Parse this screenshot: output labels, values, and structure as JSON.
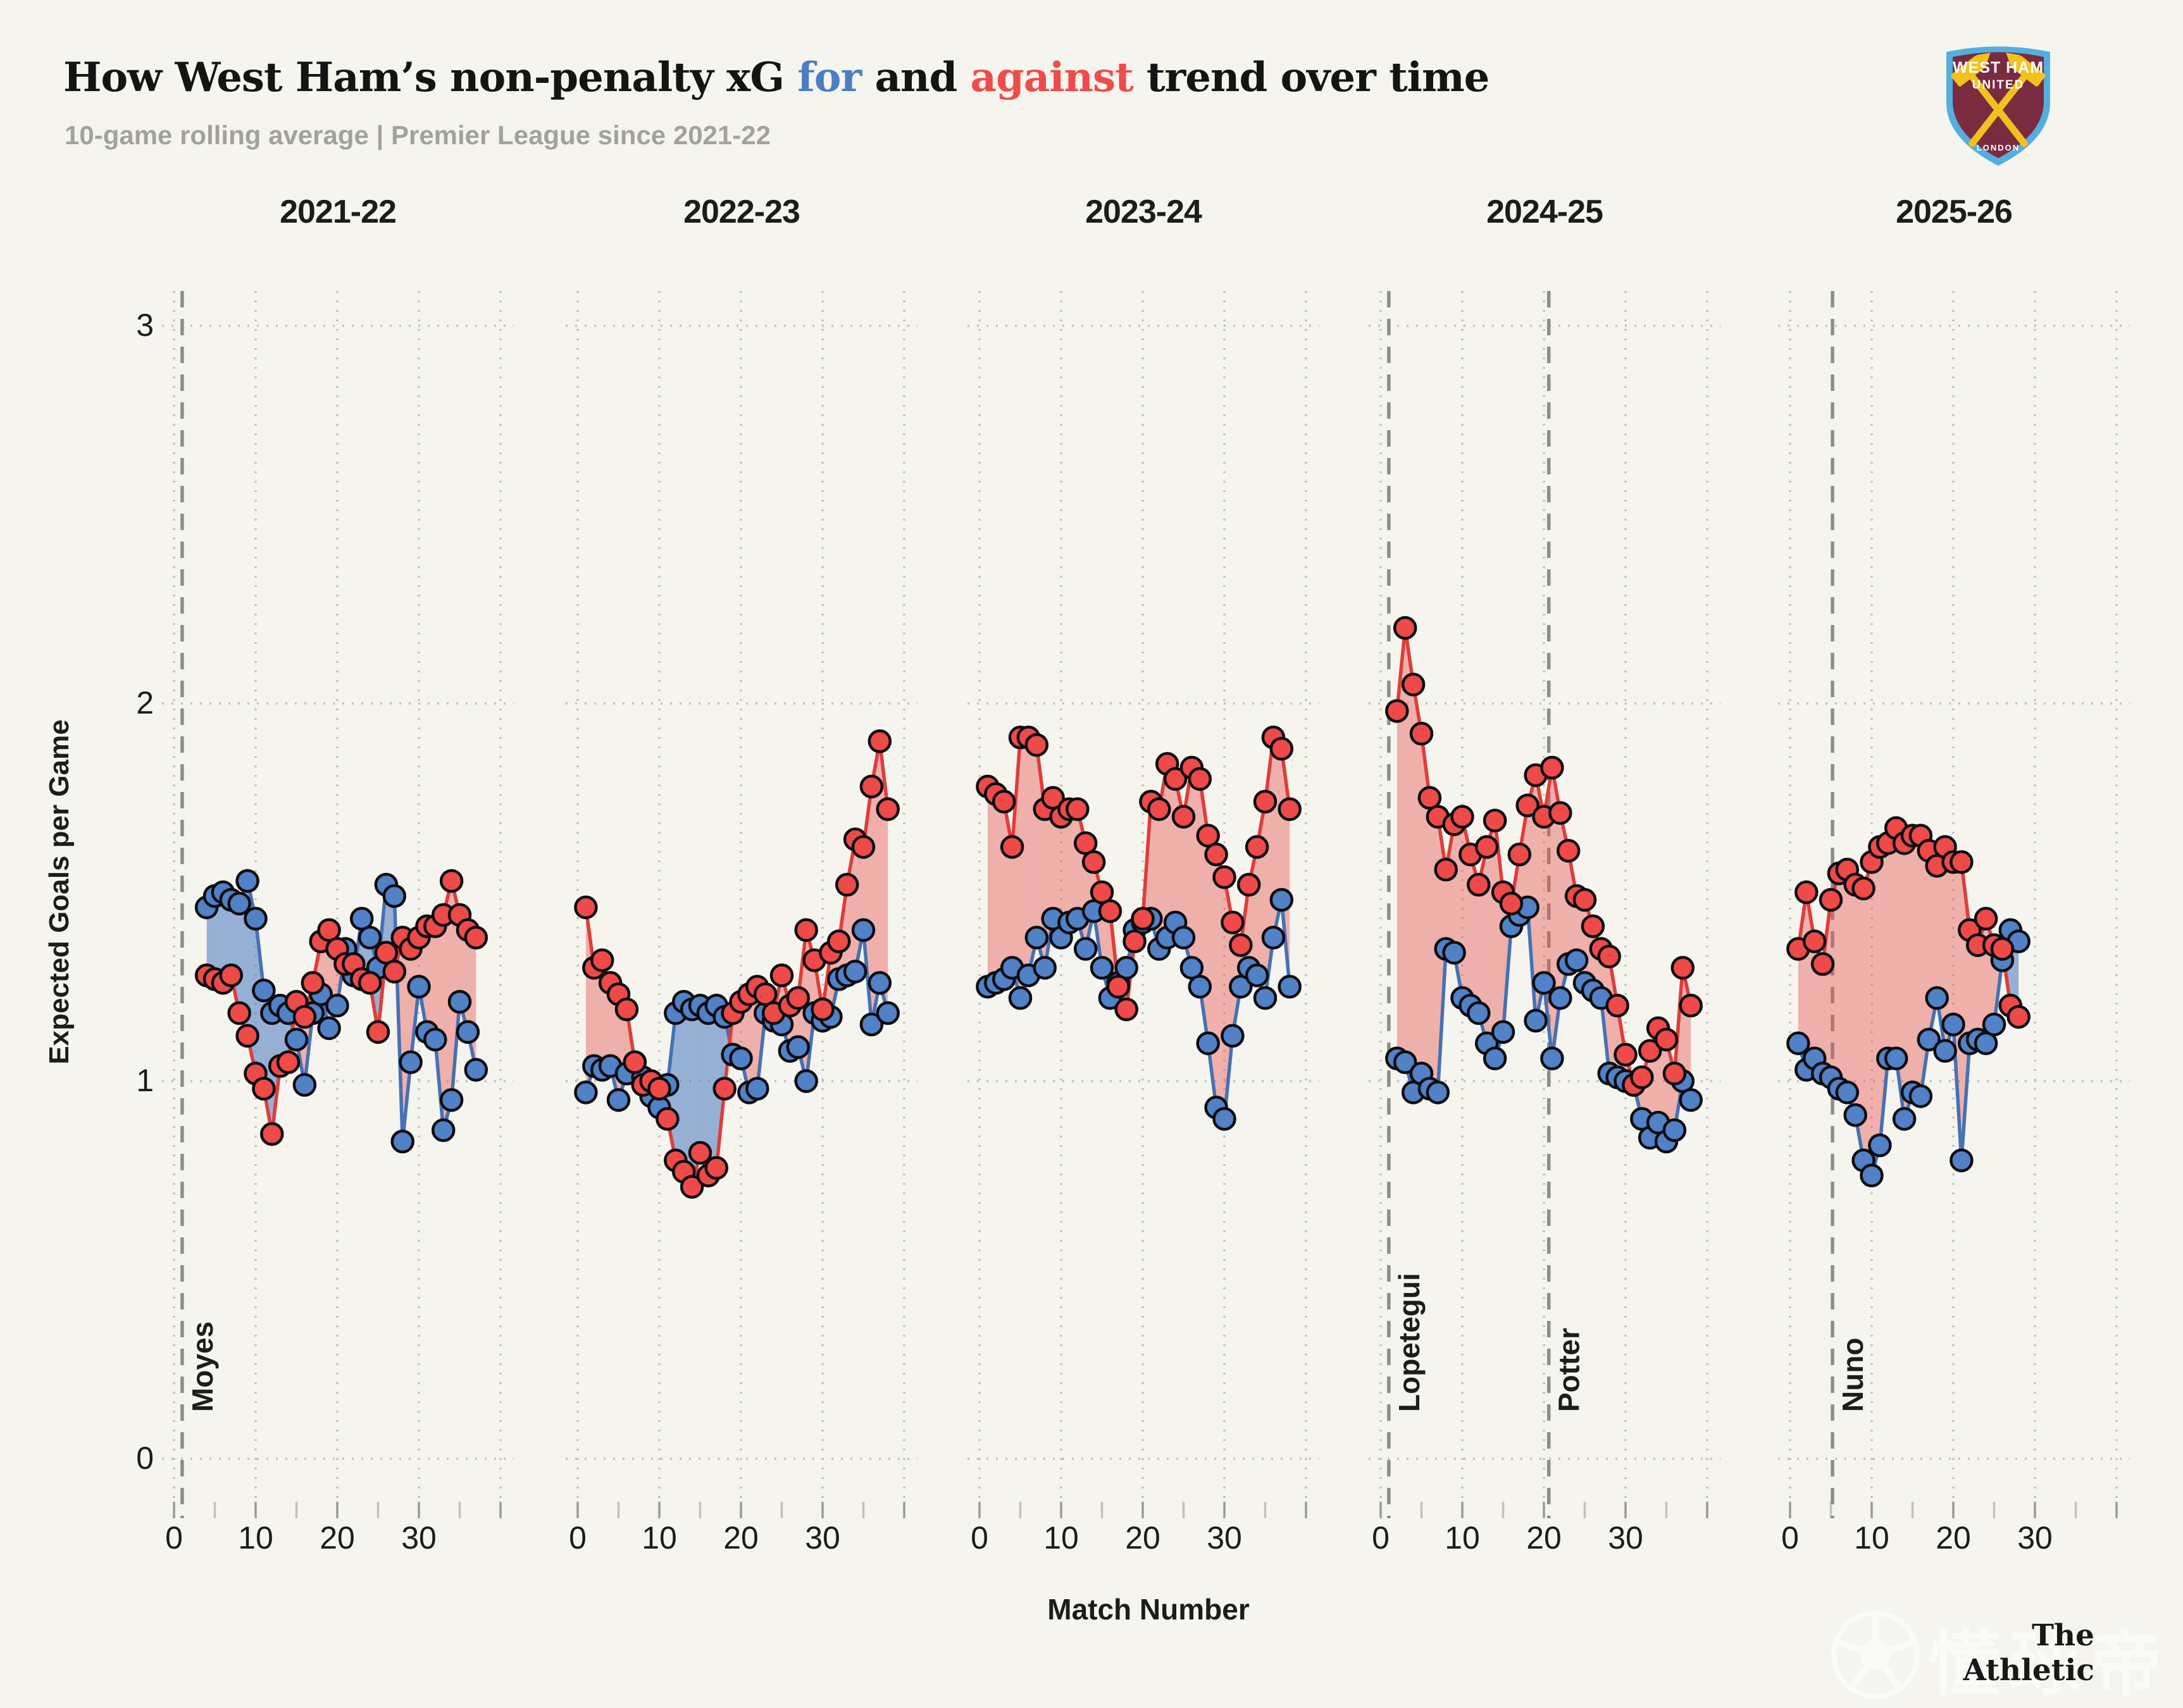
{
  "header": {
    "title_prefix": "How West Ham’s non-penalty xG ",
    "for_word": "for",
    "and_word": " and ",
    "against_word": "against",
    "title_suffix": " trend over time",
    "subtitle": "10-game rolling average | Premier League since 2021-22"
  },
  "badge": {
    "line1": "WEST HAM",
    "line2": "UNITED",
    "city": "LONDON"
  },
  "footer": {
    "brand": "The Athletic",
    "watermark": "懂球帝"
  },
  "colors": {
    "background": "#f5f4ee",
    "for_line": "#4671b3",
    "for_point": "#5181c6",
    "for_fill": "rgba(85,130,195,0.6)",
    "against_line": "#e03c3a",
    "against_point": "#ee4a47",
    "against_fill": "rgba(232,82,79,0.42)",
    "grid": "#c2c2ba",
    "manager_line": "#8e8e88",
    "title_for": "#4a7ec0",
    "title_against": "#ee4c4b",
    "subtitle": "#a2a29b"
  },
  "chart_data": {
    "type": "line",
    "title": "How West Ham's non-penalty xG for and against trend over time",
    "subtitle": "10-game rolling average | Premier League since 2021-22",
    "xlabel": "Match Number",
    "ylabel": "Expected Goals per Game",
    "y_ticks": [
      3,
      2,
      1,
      0
    ],
    "x_ticks": [
      0,
      10,
      20,
      30
    ],
    "ylim": [
      0,
      3.25
    ],
    "xlim": [
      -2,
      41.5
    ],
    "grid": "dotted",
    "legend": "inline-title (for = blue, against = red)",
    "series_units": "non-penalty expected goals per game, 10-game rolling average",
    "panels": [
      {
        "season": "2021-22",
        "start_match": 4,
        "managers": [
          {
            "label": "Moyes",
            "match": 1
          }
        ],
        "xg_for": [
          1.46,
          1.49,
          1.5,
          1.48,
          1.47,
          1.53,
          1.43,
          1.24,
          1.18,
          1.2,
          1.18,
          1.11,
          0.99,
          1.18,
          1.23,
          1.14,
          1.2,
          1.35,
          1.28,
          1.43,
          1.38,
          1.3,
          1.52,
          1.49,
          0.84,
          1.05,
          1.25,
          1.13,
          1.11,
          0.87,
          0.95,
          1.21,
          1.13,
          1.03
        ],
        "xg_against": [
          1.28,
          1.27,
          1.26,
          1.28,
          1.18,
          1.12,
          1.02,
          0.98,
          0.86,
          1.04,
          1.05,
          1.21,
          1.17,
          1.26,
          1.37,
          1.4,
          1.35,
          1.31,
          1.31,
          1.27,
          1.26,
          1.13,
          1.34,
          1.29,
          1.38,
          1.35,
          1.38,
          1.41,
          1.41,
          1.44,
          1.53,
          1.44,
          1.4,
          1.38
        ]
      },
      {
        "season": "2022-23",
        "start_match": 1,
        "managers": [],
        "xg_for": [
          0.97,
          1.04,
          1.03,
          1.04,
          0.95,
          1.02,
          1.05,
          1.01,
          0.96,
          0.93,
          0.99,
          1.18,
          1.21,
          1.19,
          1.2,
          1.18,
          1.2,
          1.17,
          1.07,
          1.06,
          0.97,
          0.98,
          1.18,
          1.16,
          1.15,
          1.08,
          1.09,
          1.0,
          1.18,
          1.16,
          1.17,
          1.27,
          1.28,
          1.29,
          1.4,
          1.15,
          1.26,
          1.18
        ],
        "xg_against": [
          1.46,
          1.3,
          1.32,
          1.26,
          1.23,
          1.19,
          1.05,
          0.99,
          1.0,
          0.98,
          0.9,
          0.79,
          0.76,
          0.72,
          0.81,
          0.75,
          0.77,
          0.98,
          1.18,
          1.21,
          1.23,
          1.25,
          1.23,
          1.18,
          1.28,
          1.2,
          1.22,
          1.4,
          1.32,
          1.19,
          1.34,
          1.37,
          1.52,
          1.64,
          1.62,
          1.78,
          1.9,
          1.72
        ]
      },
      {
        "season": "2023-24",
        "start_match": 1,
        "managers": [],
        "xg_for": [
          1.25,
          1.26,
          1.27,
          1.3,
          1.22,
          1.28,
          1.38,
          1.3,
          1.43,
          1.38,
          1.42,
          1.43,
          1.35,
          1.45,
          1.3,
          1.22,
          1.26,
          1.3,
          1.4,
          1.42,
          1.43,
          1.35,
          1.38,
          1.42,
          1.38,
          1.3,
          1.25,
          1.1,
          0.93,
          0.9,
          1.12,
          1.25,
          1.3,
          1.28,
          1.22,
          1.38,
          1.48,
          1.25
        ],
        "xg_against": [
          1.78,
          1.76,
          1.74,
          1.62,
          1.91,
          1.91,
          1.89,
          1.72,
          1.75,
          1.7,
          1.72,
          1.72,
          1.63,
          1.58,
          1.5,
          1.45,
          1.25,
          1.19,
          1.37,
          1.43,
          1.74,
          1.72,
          1.84,
          1.8,
          1.7,
          1.83,
          1.8,
          1.65,
          1.6,
          1.54,
          1.42,
          1.36,
          1.52,
          1.62,
          1.74,
          1.91,
          1.88,
          1.72
        ]
      },
      {
        "season": "2024-25",
        "start_match": 2,
        "managers": [
          {
            "label": "Lopetegui",
            "match": 1
          },
          {
            "label": "Potter",
            "match": 20.6
          }
        ],
        "xg_for": [
          1.06,
          1.05,
          0.97,
          1.02,
          0.98,
          0.97,
          1.35,
          1.34,
          1.22,
          1.2,
          1.18,
          1.1,
          1.06,
          1.13,
          1.41,
          1.44,
          1.46,
          1.16,
          1.26,
          1.06,
          1.22,
          1.31,
          1.32,
          1.26,
          1.24,
          1.22,
          1.02,
          1.01,
          1.0,
          0.99,
          0.9,
          0.85,
          0.89,
          0.84,
          0.87,
          1.0,
          0.95
        ],
        "xg_against": [
          1.98,
          2.2,
          2.05,
          1.92,
          1.75,
          1.7,
          1.56,
          1.68,
          1.7,
          1.6,
          1.52,
          1.62,
          1.69,
          1.5,
          1.47,
          1.6,
          1.73,
          1.81,
          1.7,
          1.83,
          1.71,
          1.61,
          1.49,
          1.48,
          1.41,
          1.35,
          1.33,
          1.2,
          1.07,
          0.99,
          1.01,
          1.08,
          1.14,
          1.11,
          1.02,
          1.3,
          1.2
        ]
      },
      {
        "season": "2025-26",
        "start_match": 1,
        "managers": [
          {
            "label": "Nuno",
            "match": 5.2
          }
        ],
        "xg_for": [
          1.1,
          1.03,
          1.06,
          1.02,
          1.01,
          0.98,
          0.97,
          0.91,
          0.79,
          0.75,
          0.83,
          1.06,
          1.06,
          0.9,
          0.97,
          0.96,
          1.11,
          1.22,
          1.08,
          1.15,
          0.79,
          1.1,
          1.11,
          1.1,
          1.15,
          1.32,
          1.4,
          1.37
        ],
        "xg_against": [
          1.35,
          1.5,
          1.37,
          1.31,
          1.48,
          1.55,
          1.56,
          1.52,
          1.51,
          1.58,
          1.62,
          1.63,
          1.67,
          1.63,
          1.65,
          1.65,
          1.61,
          1.57,
          1.62,
          1.58,
          1.58,
          1.4,
          1.36,
          1.43,
          1.36,
          1.35,
          1.2,
          1.17
        ]
      }
    ]
  }
}
